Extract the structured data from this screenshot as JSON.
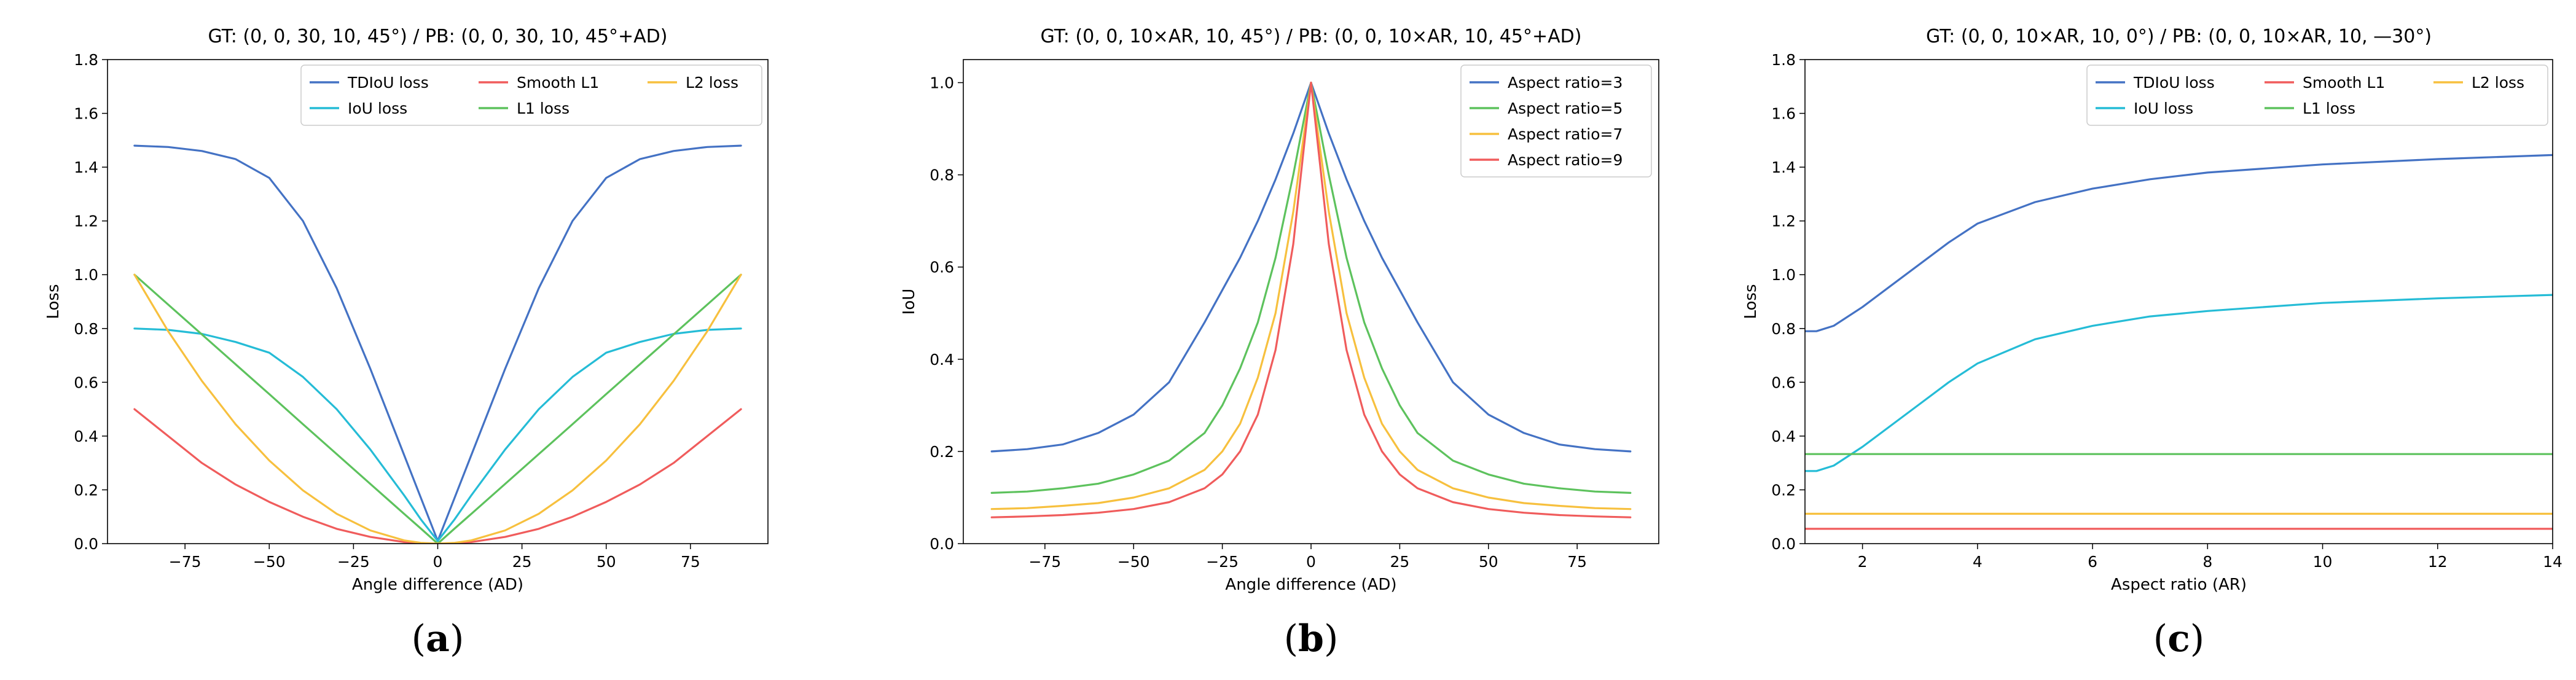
{
  "chart_data": [
    {
      "type": "line",
      "id": "a",
      "subfigure_label": "(a)",
      "title": "GT: (0, 0, 30, 10, 45°) / PB: (0, 0, 30, 10, 45°+AD)",
      "xlabel": "Angle difference (AD)",
      "ylabel": "Loss",
      "xlim": [
        -98,
        98
      ],
      "ylim": [
        0,
        1.8
      ],
      "xticks": [
        -75,
        -50,
        -25,
        0,
        25,
        50,
        75
      ],
      "xtick_labels": [
        "−75",
        "−50",
        "−25",
        "0",
        "25",
        "50",
        "75"
      ],
      "yticks": [
        0,
        0.2,
        0.4,
        0.6,
        0.8,
        1.0,
        1.2,
        1.4,
        1.6,
        1.8
      ],
      "ytick_labels": [
        "0.0",
        "0.2",
        "0.4",
        "0.6",
        "0.8",
        "1.0",
        "1.2",
        "1.4",
        "1.6",
        "1.8"
      ],
      "legend_loc": "upper-right",
      "legend_cols": 3,
      "x": [
        -90,
        -80,
        -70,
        -60,
        -50,
        -40,
        -30,
        -20,
        -10,
        -5,
        0,
        5,
        10,
        20,
        30,
        40,
        50,
        60,
        70,
        80,
        90
      ],
      "series": [
        {
          "name": "TDIoU loss",
          "color": "#4472C4",
          "values": [
            1.48,
            1.475,
            1.46,
            1.43,
            1.36,
            1.2,
            0.95,
            0.65,
            0.33,
            0.17,
            0.01,
            0.17,
            0.33,
            0.65,
            0.95,
            1.2,
            1.36,
            1.43,
            1.46,
            1.475,
            1.48
          ]
        },
        {
          "name": "IoU loss",
          "color": "#25BCD6",
          "values": [
            0.8,
            0.795,
            0.78,
            0.75,
            0.71,
            0.62,
            0.5,
            0.35,
            0.18,
            0.09,
            0.01,
            0.09,
            0.18,
            0.35,
            0.5,
            0.62,
            0.71,
            0.75,
            0.78,
            0.795,
            0.8
          ]
        },
        {
          "name": "Smooth L1",
          "color": "#F05C5C",
          "values": [
            0.5,
            0.4,
            0.3,
            0.22,
            0.155,
            0.1,
            0.055,
            0.025,
            0.006,
            0.002,
            0,
            0.002,
            0.006,
            0.025,
            0.055,
            0.1,
            0.155,
            0.22,
            0.3,
            0.4,
            0.5
          ]
        },
        {
          "name": "L1 loss",
          "color": "#5DC25D",
          "values": [
            1.0,
            0.889,
            0.778,
            0.667,
            0.556,
            0.444,
            0.333,
            0.222,
            0.111,
            0.056,
            0,
            0.056,
            0.111,
            0.222,
            0.333,
            0.444,
            0.556,
            0.667,
            0.778,
            0.889,
            1.0
          ]
        },
        {
          "name": "L2 loss",
          "color": "#F7C03E",
          "values": [
            1.0,
            0.79,
            0.605,
            0.444,
            0.309,
            0.198,
            0.111,
            0.049,
            0.012,
            0.003,
            0,
            0.003,
            0.012,
            0.049,
            0.111,
            0.198,
            0.309,
            0.444,
            0.605,
            0.79,
            1.0
          ]
        }
      ]
    },
    {
      "type": "line",
      "id": "b",
      "subfigure_label": "(b)",
      "title": "GT: (0, 0, 10×AR, 10, 45°) / PB: (0, 0, 10×AR, 10, 45°+AD)",
      "xlabel": "Angle difference (AD)",
      "ylabel": "IoU",
      "xlim": [
        -98,
        98
      ],
      "ylim": [
        0,
        1.05
      ],
      "xticks": [
        -75,
        -50,
        -25,
        0,
        25,
        50,
        75
      ],
      "xtick_labels": [
        "−75",
        "−50",
        "−25",
        "0",
        "25",
        "50",
        "75"
      ],
      "yticks": [
        0,
        0.2,
        0.4,
        0.6,
        0.8,
        1.0
      ],
      "ytick_labels": [
        "0.0",
        "0.2",
        "0.4",
        "0.6",
        "0.8",
        "1.0"
      ],
      "legend_loc": "upper-right",
      "legend_cols": 1,
      "x": [
        -90,
        -80,
        -70,
        -60,
        -50,
        -40,
        -30,
        -25,
        -20,
        -15,
        -10,
        -5,
        0,
        5,
        10,
        15,
        20,
        25,
        30,
        40,
        50,
        60,
        70,
        80,
        90
      ],
      "series": [
        {
          "name": "Aspect ratio=3",
          "color": "#4472C4",
          "values": [
            0.2,
            0.205,
            0.215,
            0.24,
            0.28,
            0.35,
            0.48,
            0.55,
            0.62,
            0.7,
            0.79,
            0.89,
            1.0,
            0.89,
            0.79,
            0.7,
            0.62,
            0.55,
            0.48,
            0.35,
            0.28,
            0.24,
            0.215,
            0.205,
            0.2
          ]
        },
        {
          "name": "Aspect ratio=5",
          "color": "#5DC25D",
          "values": [
            0.11,
            0.113,
            0.12,
            0.13,
            0.15,
            0.18,
            0.24,
            0.3,
            0.38,
            0.48,
            0.62,
            0.8,
            1.0,
            0.8,
            0.62,
            0.48,
            0.38,
            0.3,
            0.24,
            0.18,
            0.15,
            0.13,
            0.12,
            0.113,
            0.11
          ]
        },
        {
          "name": "Aspect ratio=7",
          "color": "#F7C03E",
          "values": [
            0.075,
            0.077,
            0.082,
            0.088,
            0.1,
            0.12,
            0.16,
            0.2,
            0.26,
            0.36,
            0.5,
            0.72,
            1.0,
            0.72,
            0.5,
            0.36,
            0.26,
            0.2,
            0.16,
            0.12,
            0.1,
            0.088,
            0.082,
            0.077,
            0.075
          ]
        },
        {
          "name": "Aspect ratio=9",
          "color": "#F05C5C",
          "values": [
            0.057,
            0.059,
            0.062,
            0.067,
            0.075,
            0.09,
            0.12,
            0.15,
            0.2,
            0.28,
            0.42,
            0.65,
            1.0,
            0.65,
            0.42,
            0.28,
            0.2,
            0.15,
            0.12,
            0.09,
            0.075,
            0.067,
            0.062,
            0.059,
            0.057
          ]
        }
      ]
    },
    {
      "type": "line",
      "id": "c",
      "subfigure_label": "(c)",
      "title": "GT: (0, 0, 10×AR, 10, 0°) / PB: (0, 0, 10×AR, 10, —30°)",
      "xlabel": "Aspect ratio (AR)",
      "ylabel": "Loss",
      "xlim": [
        1,
        14
      ],
      "ylim": [
        0,
        1.8
      ],
      "xticks": [
        2,
        4,
        6,
        8,
        10,
        12,
        14
      ],
      "xtick_labels": [
        "2",
        "4",
        "6",
        "8",
        "10",
        "12",
        "14"
      ],
      "yticks": [
        0,
        0.2,
        0.4,
        0.6,
        0.8,
        1.0,
        1.2,
        1.4,
        1.6,
        1.8
      ],
      "ytick_labels": [
        "0.0",
        "0.2",
        "0.4",
        "0.6",
        "0.8",
        "1.0",
        "1.2",
        "1.4",
        "1.6",
        "1.8"
      ],
      "legend_loc": "upper-right",
      "legend_cols": 3,
      "x": [
        1,
        1.2,
        1.5,
        2,
        2.5,
        3,
        3.5,
        4,
        5,
        6,
        7,
        8,
        10,
        12,
        14
      ],
      "series": [
        {
          "name": "TDIoU loss",
          "color": "#4472C4",
          "values": [
            0.79,
            0.79,
            0.81,
            0.88,
            0.96,
            1.04,
            1.12,
            1.19,
            1.27,
            1.32,
            1.355,
            1.38,
            1.41,
            1.43,
            1.445
          ]
        },
        {
          "name": "IoU loss",
          "color": "#25BCD6",
          "values": [
            0.27,
            0.27,
            0.29,
            0.36,
            0.44,
            0.52,
            0.6,
            0.67,
            0.76,
            0.81,
            0.845,
            0.865,
            0.895,
            0.912,
            0.925
          ]
        },
        {
          "name": "Smooth L1",
          "color": "#F05C5C",
          "values": [
            0.055,
            0.055,
            0.055,
            0.055,
            0.055,
            0.055,
            0.055,
            0.055,
            0.055,
            0.055,
            0.055,
            0.055,
            0.055,
            0.055,
            0.055
          ]
        },
        {
          "name": "L1 loss",
          "color": "#5DC25D",
          "values": [
            0.333,
            0.333,
            0.333,
            0.333,
            0.333,
            0.333,
            0.333,
            0.333,
            0.333,
            0.333,
            0.333,
            0.333,
            0.333,
            0.333,
            0.333
          ]
        },
        {
          "name": "L2 loss",
          "color": "#F7C03E",
          "values": [
            0.111,
            0.111,
            0.111,
            0.111,
            0.111,
            0.111,
            0.111,
            0.111,
            0.111,
            0.111,
            0.111,
            0.111,
            0.111,
            0.111,
            0.111
          ]
        }
      ]
    }
  ]
}
